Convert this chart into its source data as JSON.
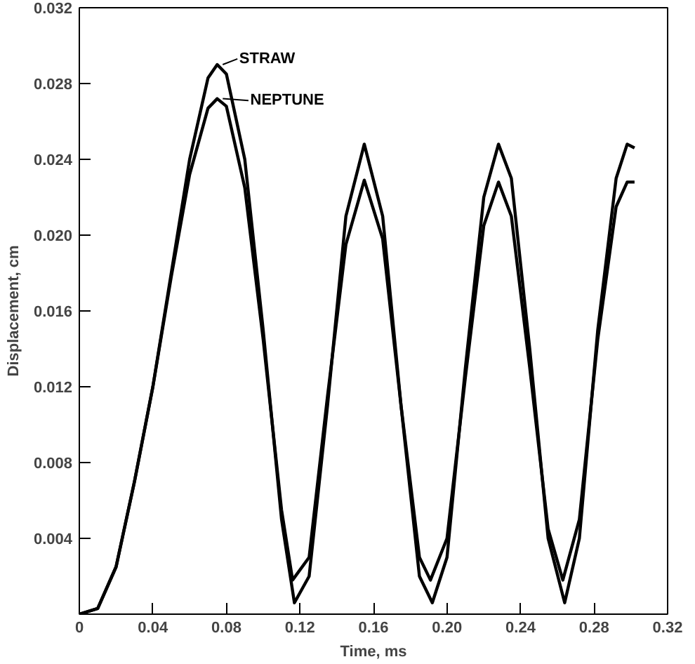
{
  "chart_data": {
    "type": "line",
    "xlabel": "Time, ms",
    "ylabel": "Displacement, cm",
    "xlim": [
      0,
      0.32
    ],
    "ylim": [
      0,
      0.032
    ],
    "xticks": [
      0,
      0.04,
      0.08,
      0.12,
      0.16,
      {
        "value": 0.2,
        "label": "0.20"
      },
      0.24,
      0.28,
      0.32
    ],
    "yticks": [
      {
        "value": 0.004,
        "label": "0.004"
      },
      {
        "value": 0.008,
        "label": "0.008"
      },
      {
        "value": 0.012,
        "label": "0.012"
      },
      {
        "value": 0.016,
        "label": "0.016"
      },
      {
        "value": 0.02,
        "label": "0.020"
      },
      {
        "value": 0.024,
        "label": "0.024"
      },
      {
        "value": 0.028,
        "label": "0.028"
      },
      {
        "value": 0.032,
        "label": "0.032"
      }
    ],
    "grid": false,
    "legend": "top",
    "line_style": "solid",
    "series": [
      {
        "name": "STRAW",
        "color": "#000000",
        "x": [
          0,
          0.01,
          0.02,
          0.03,
          0.04,
          0.05,
          0.06,
          0.07,
          0.075,
          0.08,
          0.09,
          0.1,
          0.11,
          0.117,
          0.125,
          0.135,
          0.145,
          0.155,
          0.165,
          0.175,
          0.185,
          0.192,
          0.2,
          0.21,
          0.22,
          0.228,
          0.235,
          0.245,
          0.255,
          0.264,
          0.272,
          0.282,
          0.292,
          0.298,
          0.302
        ],
        "values": [
          0,
          0.0003,
          0.0025,
          0.007,
          0.012,
          0.018,
          0.024,
          0.0283,
          0.029,
          0.0285,
          0.024,
          0.015,
          0.005,
          0.0006,
          0.002,
          0.011,
          0.021,
          0.0248,
          0.021,
          0.011,
          0.002,
          0.0006,
          0.003,
          0.013,
          0.022,
          0.0248,
          0.023,
          0.014,
          0.004,
          0.0006,
          0.004,
          0.015,
          0.023,
          0.0248,
          0.0246
        ]
      },
      {
        "name": "NEPTUNE",
        "color": "#000000",
        "x": [
          0,
          0.01,
          0.02,
          0.03,
          0.04,
          0.05,
          0.06,
          0.07,
          0.075,
          0.08,
          0.09,
          0.1,
          0.11,
          0.116,
          0.125,
          0.135,
          0.145,
          0.155,
          0.165,
          0.175,
          0.185,
          0.191,
          0.2,
          0.21,
          0.22,
          0.228,
          0.235,
          0.245,
          0.255,
          0.263,
          0.272,
          0.282,
          0.292,
          0.298,
          0.302
        ],
        "values": [
          0,
          0.0003,
          0.0025,
          0.007,
          0.012,
          0.0178,
          0.0232,
          0.0267,
          0.0272,
          0.0268,
          0.0225,
          0.0145,
          0.0055,
          0.0018,
          0.003,
          0.0115,
          0.0195,
          0.0229,
          0.0198,
          0.011,
          0.003,
          0.0018,
          0.004,
          0.0125,
          0.0205,
          0.0228,
          0.021,
          0.013,
          0.0045,
          0.0018,
          0.005,
          0.0145,
          0.0215,
          0.0228,
          0.0228
        ]
      }
    ]
  }
}
